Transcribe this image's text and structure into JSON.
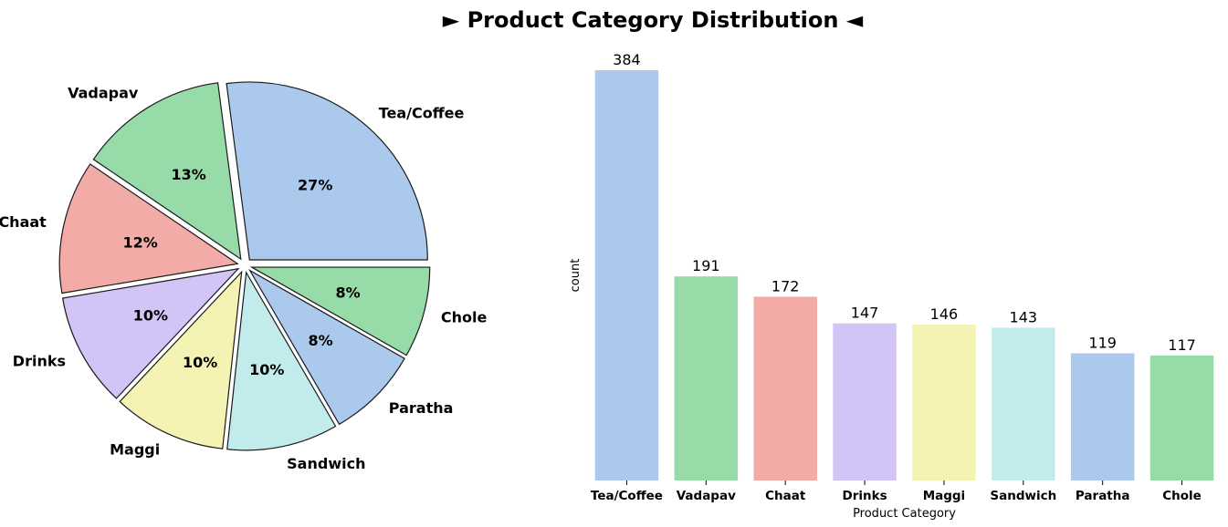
{
  "title": "► Product Category Distribution ◄",
  "chart_data": [
    {
      "type": "pie",
      "categories": [
        "Tea/Coffee",
        "Vadapav",
        "Chaat",
        "Drinks",
        "Maggi",
        "Sandwich",
        "Paratha",
        "Chole"
      ],
      "values": [
        384,
        191,
        172,
        147,
        146,
        143,
        119,
        117
      ],
      "percent_labels": [
        "27%",
        "13%",
        "12%",
        "10%",
        "10%",
        "10%",
        "8%",
        "8%"
      ],
      "colors": [
        "#abc9ec",
        "#97dba9",
        "#f2aba6",
        "#d2c4f6",
        "#f4f3b4",
        "#c2eceb",
        "#abc9ec",
        "#97dba9"
      ],
      "start_angle_deg": 0,
      "direction": "counterclockwise",
      "exploded": true
    },
    {
      "type": "bar",
      "categories": [
        "Tea/Coffee",
        "Vadapav",
        "Chaat",
        "Drinks",
        "Maggi",
        "Sandwich",
        "Paratha",
        "Chole"
      ],
      "values": [
        384,
        191,
        172,
        147,
        146,
        143,
        119,
        117
      ],
      "colors": [
        "#abc9ec",
        "#97dba9",
        "#f2aba6",
        "#d2c4f6",
        "#f4f3b4",
        "#c2eceb",
        "#abc9ec",
        "#97dba9"
      ],
      "xlabel": "Product Category",
      "ylabel": "count",
      "ylim": [
        0,
        384
      ],
      "data_labels": true,
      "grid": false
    }
  ]
}
